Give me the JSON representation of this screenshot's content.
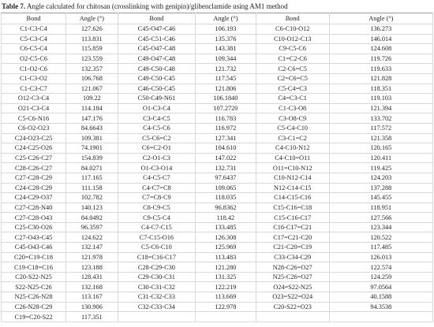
{
  "title": {
    "label": "Table 7.",
    "text": "Angle calculated for chitosan (crosslinking with genipin)/glibenclamide using AM1 method"
  },
  "table": {
    "header": [
      "Bond",
      "Angle (°)",
      "Bond",
      "Angle (°)",
      "Bond",
      "Angle (°)"
    ],
    "rows": [
      [
        "C1-C3-C4",
        "127.626",
        "C45-O47-C46",
        "106.193",
        "C6-C10-O12",
        "136.273"
      ],
      [
        "C5-C3-C4",
        "113.831",
        "C45-C51-C46",
        "135.376",
        "C10-O12-C13",
        "146.014"
      ],
      [
        "C6-C5-C4",
        "115.859",
        "C45-O47-C48",
        "143.381",
        "C9-C5-C6",
        "124.608"
      ],
      [
        "O2-C5-C6",
        "123.559",
        "C49-O47-C48",
        "109.344",
        "C1=C2-C6",
        "119.726"
      ],
      [
        "C1-O2-C6",
        "132.357",
        "C49-C50-C48",
        "121.732",
        "C2-C6=C5",
        "119.633"
      ],
      [
        "C1-C3-O2",
        "106.768",
        "C49-C50-C45",
        "117.545",
        "C2=C6=C5",
        "121.828"
      ],
      [
        "C1-C3-C7",
        "121.067",
        "C46-C50-C45",
        "121.806",
        "C5-C4=C3",
        "118.351"
      ],
      [
        "O12-C3-C4",
        "109.22",
        "C50-C49-N61",
        "106.1840",
        "C4=C3-C1",
        "119.103"
      ],
      [
        "O21-C3-C4",
        "114.184",
        "O1-C3-C4",
        "107.2720",
        "C1-C3-O8",
        "121.394"
      ],
      [
        "C5-C6-N16",
        "147.176",
        "C3-C4-C5",
        "116.783",
        "C3-O8-C9",
        "133.702"
      ],
      [
        "C6-O2-O23",
        "84.6643",
        "C4-C5-C6",
        "116.972",
        "C5-C4-C10",
        "117.572"
      ],
      [
        "C24-O23-C25",
        "109.381",
        "C5-C6=C2",
        "127.341",
        "C3-C1=C2",
        "121.358"
      ],
      [
        "C24-C25-O26",
        "74.1901",
        "C6=C2-O1",
        "104.610",
        "C4-C10-N12",
        "120.165"
      ],
      [
        "C25-C26-C27",
        "154.839",
        "C2-O1-C3",
        "147.022",
        "C4-C10=O11",
        "120.411"
      ],
      [
        "C28-C26-C27",
        "84.0271",
        "O1-C3-O14",
        "132.731",
        "O11=C10-N12",
        "119.425"
      ],
      [
        "C27-C28-C29",
        "117.165",
        "C4-C5-C7",
        "97.6437",
        "C10-N12-C14",
        "124.203"
      ],
      [
        "C24-C28-C29",
        "111.158",
        "C4-C7=C8",
        "109.065",
        "N12-C14-C15",
        "137.288"
      ],
      [
        "C24-C29-O37",
        "102.782",
        "C7=C8-C9",
        "118.035",
        "C14-C15-C16",
        "145.455"
      ],
      [
        "C27-C28-N40",
        "140.123",
        "C8-C9-C5",
        "96.8362",
        "C15-C16=C18",
        "118.951"
      ],
      [
        "C27-C28-O43",
        "84.0492",
        "C9-C5-C4",
        "118.42",
        "C15-C16-C17",
        "127.566"
      ],
      [
        "C25-C30-O26",
        "96.3597",
        "C4-C7-C15",
        "133.485",
        "C16-C17=C21",
        "123.344"
      ],
      [
        "C27-O43-C45",
        "124.622",
        "C7-C15-O16",
        "126.308",
        "C17=C21-C20",
        "120.522"
      ],
      [
        "C45-O43-C46",
        "132.147",
        "C5-C6-C10",
        "125.969",
        "C21-C20=C19",
        "117.485"
      ],
      [
        "C20=C19-C18",
        "121.978",
        "C18=C16-C17",
        "113.483",
        "C33-C34-C29",
        "126.013"
      ],
      [
        "C19-C18=C16",
        "123.188",
        "C28-C29-C30",
        "121.280",
        "N28-C26=O27",
        "122.574"
      ],
      [
        "C20-S22-N25",
        "128.431",
        "C29-C30-C31",
        "131.325",
        "N25-C26=O27",
        "124.259"
      ],
      [
        "S22-N25-C26",
        "132.168",
        "C30-C31-C32",
        "122.219",
        "O24=S22-N25",
        "97.0564"
      ],
      [
        "N25-C26-N28",
        "113.167",
        "C31-C32-C33",
        "113.669",
        "O23=S22=O24",
        "40.1588"
      ],
      [
        "C26-N28-C29",
        "130.906",
        "C32-C33-C34",
        "122.978",
        "C20-S22=O23",
        "94.3538"
      ],
      [
        "C19=C20-S22",
        "117.351"
      ]
    ]
  }
}
